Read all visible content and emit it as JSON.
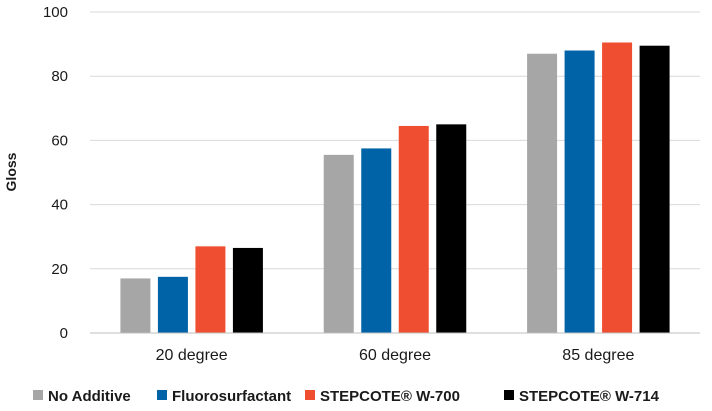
{
  "chart_data": {
    "type": "bar",
    "title": "",
    "xlabel": "",
    "ylabel": "Gloss",
    "ylim": [
      0,
      100
    ],
    "yticks": [
      0,
      20,
      40,
      60,
      80,
      100
    ],
    "grid": true,
    "legend_position": "bottom",
    "categories": [
      "20 degree",
      "60 degree",
      "85 degree"
    ],
    "series": [
      {
        "name": "No Additive",
        "color": "#a6a6a6",
        "values": [
          17,
          55.5,
          87
        ]
      },
      {
        "name": "Fluorosurfactant",
        "color": "#0063a8",
        "values": [
          17.5,
          57.5,
          88
        ]
      },
      {
        "name": "STEPCOTE® W-700",
        "color": "#f04e30",
        "values": [
          27,
          64.5,
          90.5
        ]
      },
      {
        "name": "STEPCOTE® W-714",
        "color": "#000000",
        "values": [
          26.5,
          65,
          89.5
        ]
      }
    ]
  }
}
